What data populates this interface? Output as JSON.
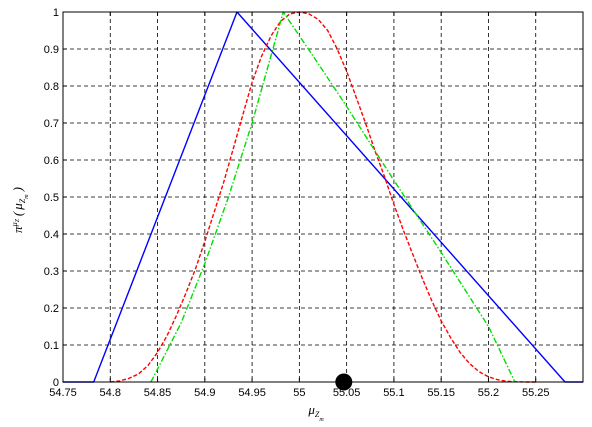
{
  "chart_data": {
    "type": "line",
    "title": "",
    "xlabel": {
      "main": "μ",
      "sub": "Z",
      "subsub": "m"
    },
    "ylabel": {
      "main": "π",
      "sup": "μ",
      "supsub": "Z",
      "paren_open": "(",
      "mu": "μ",
      "sub": "Z",
      "subsub": "m",
      "paren_close": ")"
    },
    "xlim": [
      54.75,
      55.3
    ],
    "ylim": [
      0,
      1
    ],
    "xticks": [
      54.75,
      54.8,
      54.85,
      54.9,
      54.95,
      55,
      55.05,
      55.1,
      55.15,
      55.2,
      55.25
    ],
    "xtick_labels": [
      "54.75",
      "54.8",
      "54.85",
      "54.9",
      "54.95",
      "55",
      "55.05",
      "55.1",
      "55.15",
      "55.2",
      "55.25"
    ],
    "yticks": [
      0,
      0.1,
      0.2,
      0.3,
      0.4,
      0.5,
      0.6,
      0.7,
      0.8,
      0.9,
      1
    ],
    "ytick_labels": [
      "0",
      "0.1",
      "0.2",
      "0.3",
      "0.4",
      "0.5",
      "0.6",
      "0.7",
      "0.8",
      "0.9",
      "1"
    ],
    "grid": true,
    "series": [
      {
        "style": "solid",
        "color": "#0000ff",
        "x": [
          54.75,
          54.7825,
          54.934,
          55.281,
          55.3
        ],
        "y": [
          0,
          0,
          1,
          0,
          0
        ]
      },
      {
        "style": "dashed",
        "color": "#ff0000",
        "x": [
          54.8,
          54.81,
          54.82,
          54.83,
          54.84,
          54.85,
          54.86,
          54.87,
          54.88,
          54.89,
          54.9,
          54.91,
          54.92,
          54.93,
          54.94,
          54.95,
          54.96,
          54.97,
          54.98,
          54.99,
          55.0,
          55.01,
          55.02,
          55.03,
          55.04,
          55.05,
          55.06,
          55.07,
          55.08,
          55.09,
          55.1,
          55.11,
          55.12,
          55.13,
          55.14,
          55.15,
          55.16,
          55.17,
          55.18,
          55.19,
          55.2,
          55.21,
          55.22,
          55.23,
          55.24,
          55.25
        ],
        "y": [
          0,
          0.003,
          0.01,
          0.022,
          0.045,
          0.08,
          0.125,
          0.18,
          0.24,
          0.305,
          0.38,
          0.46,
          0.54,
          0.63,
          0.72,
          0.81,
          0.88,
          0.935,
          0.975,
          0.995,
          1.0,
          0.995,
          0.98,
          0.95,
          0.9,
          0.84,
          0.77,
          0.7,
          0.625,
          0.555,
          0.48,
          0.41,
          0.345,
          0.28,
          0.22,
          0.165,
          0.12,
          0.08,
          0.05,
          0.028,
          0.014,
          0.006,
          0.002,
          0.0005,
          0.0001,
          0
        ]
      },
      {
        "style": "dashdot",
        "color": "#00dd00",
        "x": [
          54.843,
          54.875,
          54.9,
          54.925,
          54.95,
          54.983,
          55.02,
          55.05,
          55.1,
          55.15,
          55.2,
          55.228
        ],
        "y": [
          0,
          0.16,
          0.32,
          0.5,
          0.7,
          1.0,
          0.86,
          0.745,
          0.545,
          0.35,
          0.15,
          0
        ]
      }
    ],
    "marker": {
      "x": 55.047,
      "y": 0,
      "color": "#000000"
    }
  }
}
